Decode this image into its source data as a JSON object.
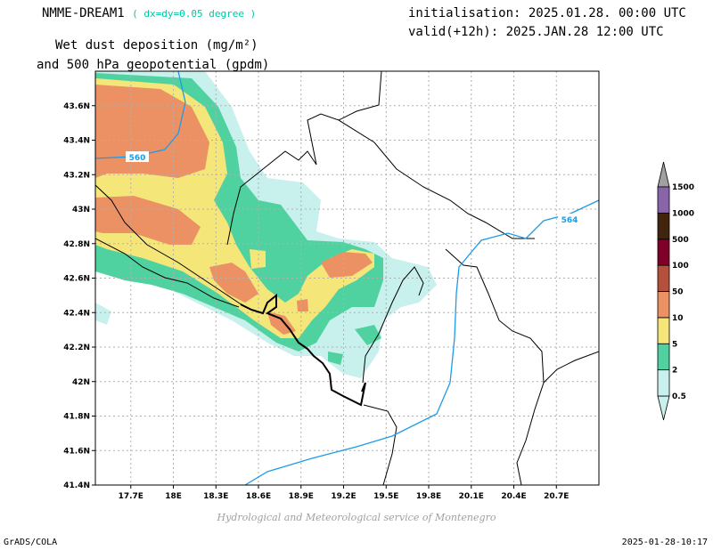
{
  "header": {
    "model": "NMME-DREAM1",
    "resolution": "( dx=dy=0.05 degree )",
    "initialisation": "initialisation: 2025.01.28. 00:00 UTC",
    "valid": "valid(+12h): 2025.JAN.28 12:00 UTC",
    "variable_line1": "Wet dust deposition (mg/m²)",
    "variable_line2": "and 500 hPa geopotential (gpdm)"
  },
  "map": {
    "lon_ticks": [
      "17.7E",
      "18E",
      "18.3E",
      "18.6E",
      "18.9E",
      "19.2E",
      "19.5E",
      "19.8E",
      "20.1E",
      "20.4E",
      "20.7E"
    ],
    "lat_ticks": [
      "43.6N",
      "43.4N",
      "43.2N",
      "43N",
      "42.8N",
      "42.6N",
      "42.4N",
      "42.2N",
      "42N",
      "41.8N",
      "41.6N",
      "41.4N"
    ],
    "lon_range": [
      17.45,
      21.0
    ],
    "lat_range": [
      41.4,
      43.8
    ],
    "contours": [
      {
        "value": "560",
        "color": "#1e9be6"
      },
      {
        "value": "564",
        "color": "#1e9be6"
      }
    ],
    "grid_color": "#b0b0b0"
  },
  "colorbar": {
    "labels": [
      "0.5",
      "2",
      "5",
      "10",
      "50",
      "100",
      "500",
      "1000",
      "1500"
    ],
    "colors": [
      "#c8f0ec",
      "#50d2a0",
      "#f5e67a",
      "#eb9164",
      "#b4503c",
      "#80002a",
      "#42240e",
      "#8a64a8",
      "#a0a0a0"
    ]
  },
  "credit": "Hydrological and Meteorological service of Montenegro",
  "footer": {
    "left": "GrADS/COLA",
    "right": "2025-01-28-10:17"
  }
}
